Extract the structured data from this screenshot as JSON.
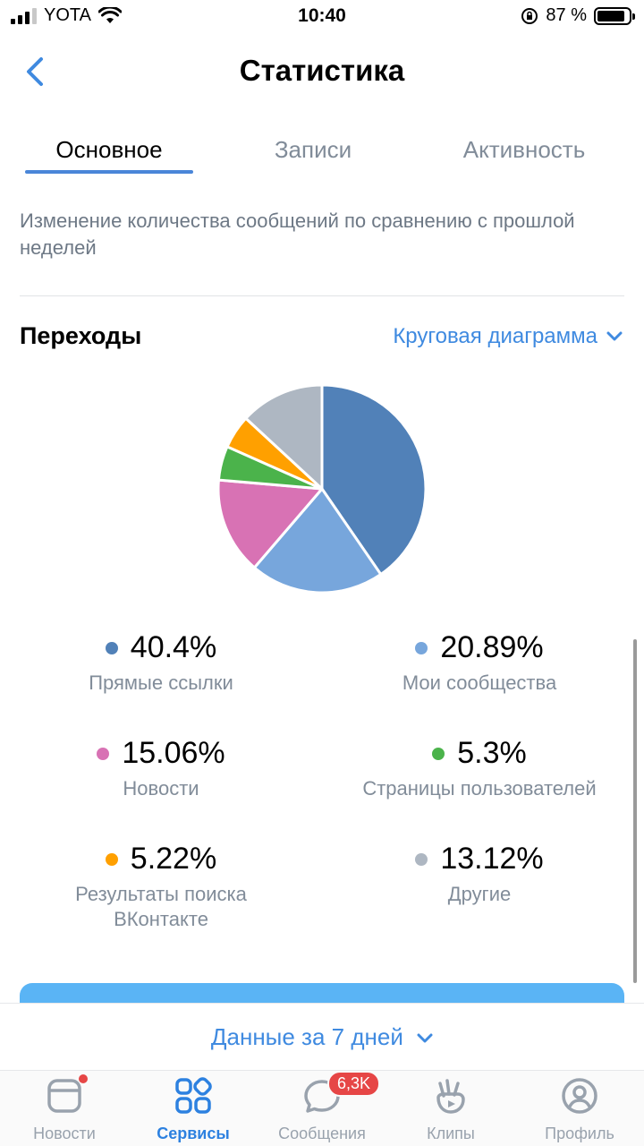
{
  "status_bar": {
    "carrier": "YOTA",
    "time": "10:40",
    "battery_percent_label": "87 %",
    "battery_level": 0.87
  },
  "header": {
    "title": "Статистика",
    "back_icon": "chevron-left-icon"
  },
  "tabs": [
    {
      "label": "Основное",
      "active": true
    },
    {
      "label": "Записи",
      "active": false
    },
    {
      "label": "Активность",
      "active": false
    }
  ],
  "description": "Изменение количества сообщений по сравнению с прошлой неделей",
  "section": {
    "title": "Переходы",
    "chart_type_label": "Круговая диаграмма"
  },
  "chart_data": {
    "type": "pie",
    "categories": [
      "Прямые ссылки",
      "Мои сообщества",
      "Новости",
      "Страницы пользователей",
      "Результаты поиска ВКонтакте",
      "Другие"
    ],
    "values": [
      40.4,
      20.89,
      15.06,
      5.3,
      5.22,
      13.12
    ],
    "value_labels": [
      "40.4%",
      "20.89%",
      "15.06%",
      "5.3%",
      "5.22%",
      "13.12%"
    ],
    "colors": [
      "#5181b8",
      "#77a6dc",
      "#d872b4",
      "#4bb34b",
      "#ffa000",
      "#aeb7c2"
    ]
  },
  "period": {
    "label": "Данные за 7 дней"
  },
  "bottom_nav": [
    {
      "label": "Новости",
      "icon": "news-icon",
      "active": false
    },
    {
      "label": "Сервисы",
      "icon": "services-icon",
      "active": true
    },
    {
      "label": "Сообщения",
      "icon": "messages-icon",
      "active": false,
      "badge": "6,3K"
    },
    {
      "label": "Клипы",
      "icon": "clips-icon",
      "active": false
    },
    {
      "label": "Профиль",
      "icon": "profile-icon",
      "active": false
    }
  ]
}
